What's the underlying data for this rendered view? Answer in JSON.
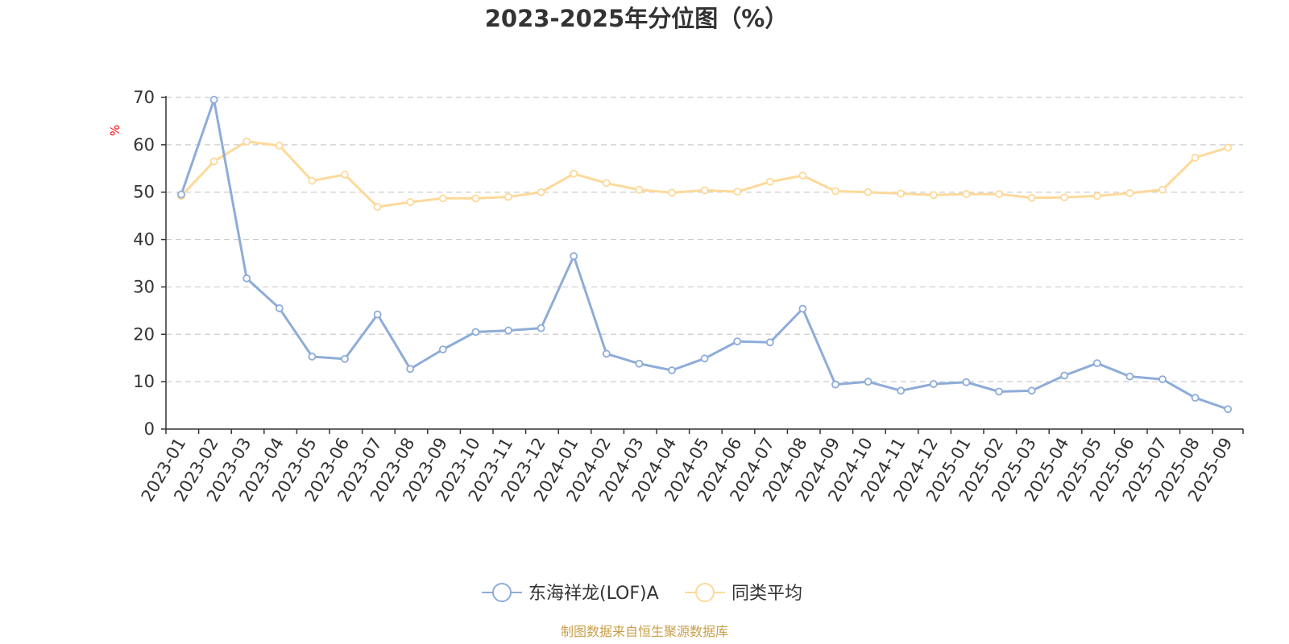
{
  "chart_data": {
    "type": "line",
    "title": "2023-2025年分位图（%）",
    "ylabel": "%",
    "xlabel": "",
    "ylim": [
      0,
      70
    ],
    "yticks": [
      0,
      10,
      20,
      30,
      40,
      50,
      60,
      70
    ],
    "grid": true,
    "legend_position": "bottom-center",
    "categories": [
      "2023-01",
      "2023-02",
      "2023-03",
      "2023-04",
      "2023-05",
      "2023-06",
      "2023-07",
      "2023-08",
      "2023-09",
      "2023-10",
      "2023-11",
      "2023-12",
      "2024-01",
      "2024-02",
      "2024-03",
      "2024-04",
      "2024-05",
      "2024-06",
      "2024-07",
      "2024-08",
      "2024-09",
      "2024-10",
      "2024-11",
      "2024-12",
      "2025-01",
      "2025-02",
      "2025-03",
      "2025-04",
      "2025-05",
      "2025-06",
      "2025-07",
      "2025-08",
      "2025-09"
    ],
    "series": [
      {
        "name": "东海祥龙(LOF)A",
        "color": "#8eacd8",
        "values": [
          49.5,
          69.5,
          31.8,
          25.5,
          15.3,
          14.8,
          24.2,
          12.7,
          16.8,
          20.5,
          20.8,
          21.3,
          36.5,
          15.9,
          13.8,
          12.4,
          14.9,
          18.5,
          18.3,
          25.4,
          9.4,
          10.0,
          8.1,
          9.5,
          9.9,
          7.9,
          8.1,
          11.3,
          13.9,
          11.1,
          10.5,
          6.6,
          4.2
        ]
      },
      {
        "name": "同类平均",
        "color": "#fdd99a",
        "values": [
          49.2,
          56.5,
          60.7,
          59.8,
          52.4,
          53.7,
          46.9,
          47.9,
          48.7,
          48.7,
          49.0,
          50.0,
          53.9,
          51.9,
          50.5,
          49.9,
          50.4,
          50.1,
          52.2,
          53.5,
          50.2,
          50.0,
          49.7,
          49.4,
          49.6,
          49.6,
          48.8,
          48.9,
          49.2,
          49.8,
          50.5,
          57.3,
          59.4
        ]
      }
    ]
  },
  "colors": {
    "title": "#333333",
    "axis": "#333333",
    "grid": "#cccccc",
    "unit_label": "#ff0000",
    "source": "#c8a04a"
  },
  "source_text": "制图数据来自恒生聚源数据库"
}
